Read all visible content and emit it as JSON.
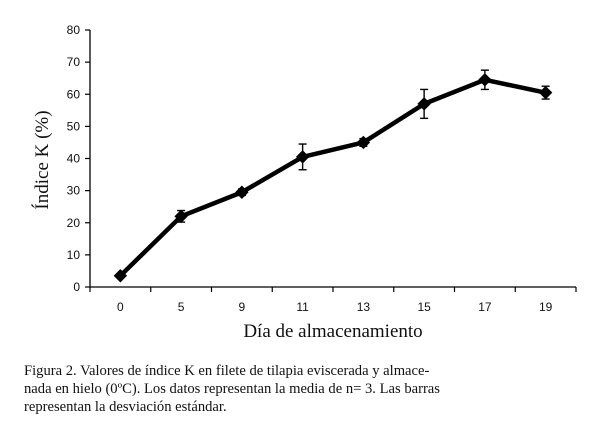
{
  "chart_data": {
    "type": "line",
    "title": "",
    "xlabel": "Día de almacenamiento",
    "ylabel": "Índice K (%)",
    "categories": [
      "0",
      "5",
      "9",
      "11",
      "13",
      "15",
      "17",
      "19"
    ],
    "yticks": [
      "0",
      "10",
      "20",
      "30",
      "40",
      "50",
      "60",
      "70",
      "80"
    ],
    "ylim": [
      0,
      80
    ],
    "grid": false,
    "legend": "none",
    "series": [
      {
        "values": [
          3.5,
          22,
          29.5,
          40.5,
          45,
          57,
          64.5,
          60.5
        ],
        "std": [
          0.5,
          1.8,
          1.0,
          4.0,
          1.2,
          4.5,
          3.0,
          2.0
        ],
        "color": "#000000",
        "marker": "diamond"
      }
    ]
  },
  "caption": {
    "lines": [
      "Figura 2. Valores de índice K en filete de tilapia eviscerada y almace-",
      "nada en hielo (0ºC). Los datos representan la media de n= 3. Las barras",
      "representan la desviación estándar."
    ]
  }
}
